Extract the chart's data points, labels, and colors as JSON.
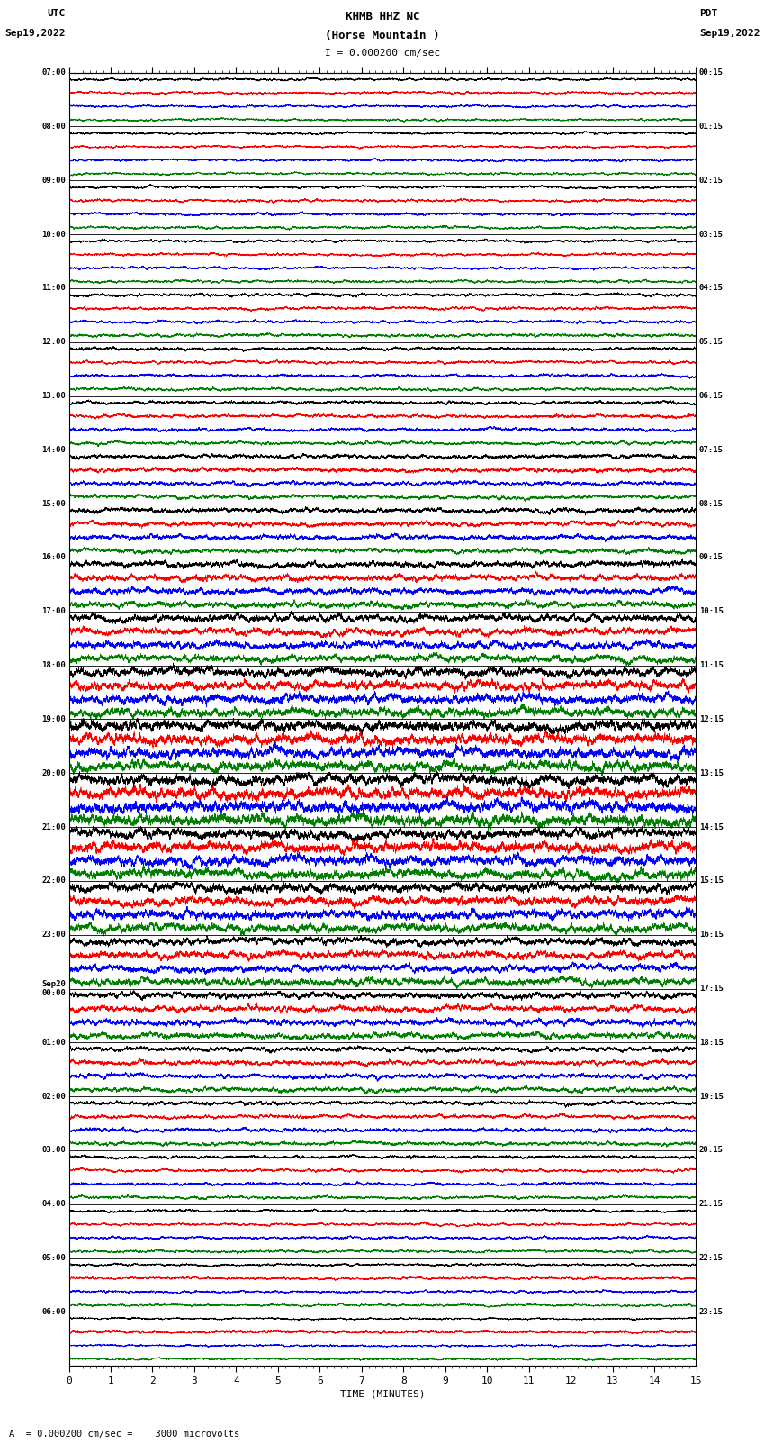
{
  "title_line1": "KHMB HHZ NC",
  "title_line2": "(Horse Mountain )",
  "title_scale": "I = 0.000200 cm/sec",
  "left_label_top": "UTC",
  "left_label_date": "Sep19,2022",
  "right_label_top": "PDT",
  "right_label_date": "Sep19,2022",
  "bottom_label": "TIME (MINUTES)",
  "scale_label": "= 0.000200 cm/sec =    3000 microvolts",
  "utc_times_labeled": [
    "07:00",
    "08:00",
    "09:00",
    "10:00",
    "11:00",
    "12:00",
    "13:00",
    "14:00",
    "15:00",
    "16:00",
    "17:00",
    "18:00",
    "19:00",
    "20:00",
    "21:00",
    "22:00",
    "23:00",
    "Sep20\n00:00",
    "01:00",
    "02:00",
    "03:00",
    "04:00",
    "05:00",
    "06:00"
  ],
  "pdt_times_labeled": [
    "00:15",
    "01:15",
    "02:15",
    "03:15",
    "04:15",
    "05:15",
    "06:15",
    "07:15",
    "08:15",
    "09:15",
    "10:15",
    "11:15",
    "12:15",
    "13:15",
    "14:15",
    "15:15",
    "16:15",
    "17:15",
    "18:15",
    "19:15",
    "20:15",
    "21:15",
    "22:15",
    "23:15"
  ],
  "n_hour_rows": 24,
  "traces_per_hour": 4,
  "minutes_per_row": 15,
  "sample_rate": 40,
  "colors": [
    "black",
    "red",
    "blue",
    "green"
  ],
  "background_color": "white",
  "fig_width": 8.5,
  "fig_height": 16.13,
  "dpi": 100,
  "amp_profile": [
    0.35,
    0.35,
    0.4,
    0.4,
    0.45,
    0.45,
    0.5,
    0.6,
    0.7,
    0.9,
    1.1,
    1.3,
    1.5,
    1.6,
    1.5,
    1.3,
    1.1,
    0.9,
    0.7,
    0.55,
    0.45,
    0.4,
    0.35,
    0.3
  ]
}
